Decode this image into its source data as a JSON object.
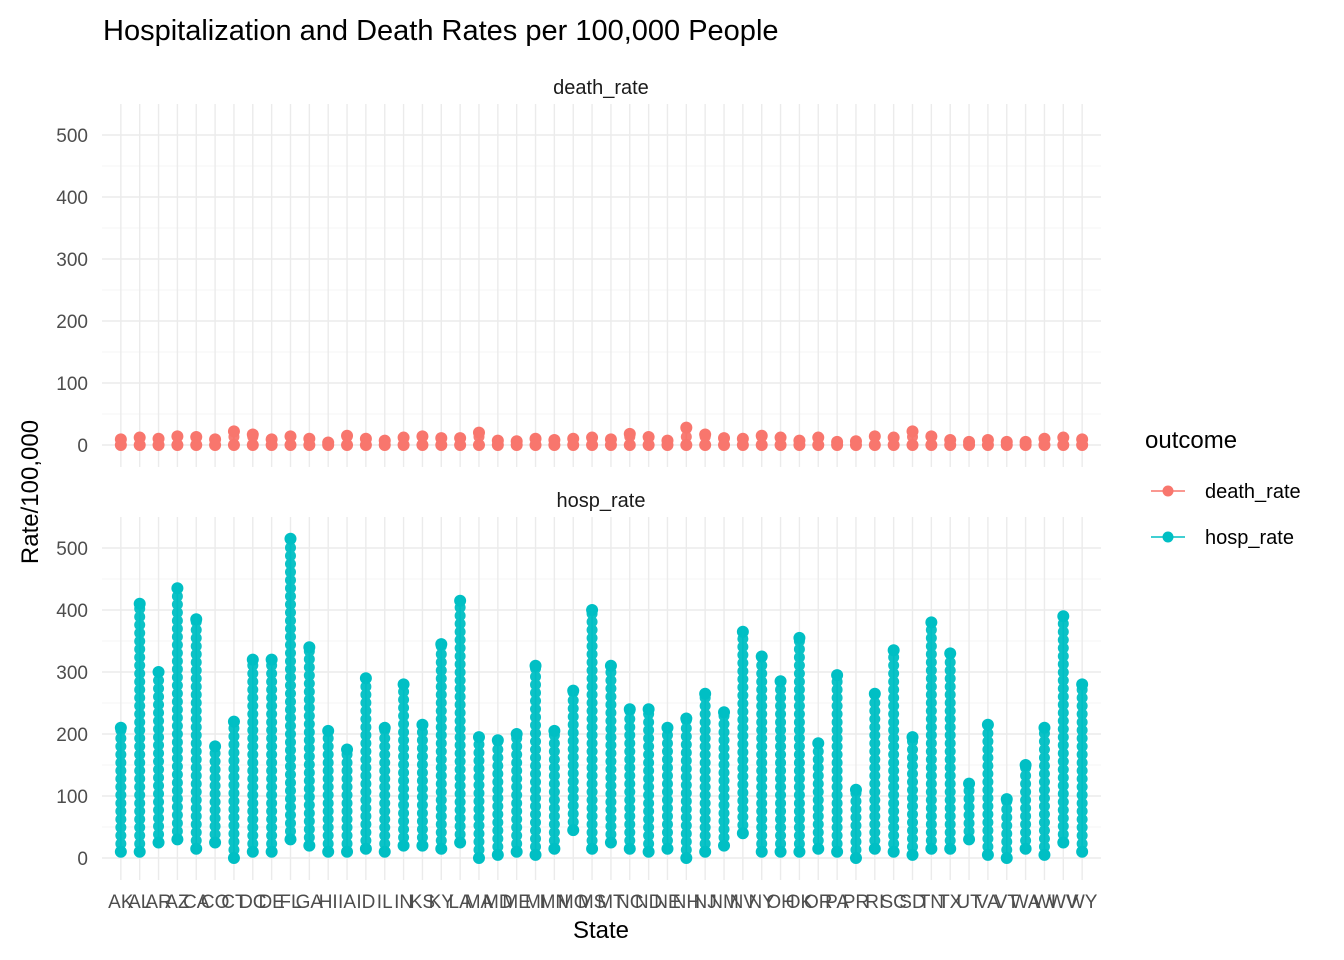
{
  "chart_data": {
    "type": "line",
    "title": "Hospitalization and Death Rates per 100,000 People",
    "xlabel": "State",
    "ylabel": "Rate/100,000",
    "ylim": [
      0,
      520
    ],
    "yticks": [
      0,
      100,
      200,
      300,
      400,
      500
    ],
    "grid": true,
    "legend": {
      "title": "outcome",
      "placement": "right"
    },
    "colors": {
      "death_rate": "#F8766D",
      "hosp_rate": "#00BFC4"
    },
    "categories": [
      "AK",
      "AL",
      "AR",
      "AZ",
      "CA",
      "CO",
      "CT",
      "DC",
      "DE",
      "FL",
      "GA",
      "HI",
      "IA",
      "ID",
      "IL",
      "IN",
      "KS",
      "KY",
      "LA",
      "MA",
      "MD",
      "ME",
      "MI",
      "MN",
      "MO",
      "MS",
      "MT",
      "NC",
      "ND",
      "NE",
      "NH",
      "NJ",
      "NM",
      "NV",
      "NY",
      "OH",
      "OK",
      "OR",
      "PA",
      "PR",
      "RI",
      "SC",
      "SD",
      "TN",
      "TX",
      "UT",
      "VA",
      "VT",
      "WA",
      "WI",
      "WV",
      "WY"
    ],
    "series": [
      {
        "name": "death_rate",
        "ranges": [
          [
            0,
            9
          ],
          [
            0,
            12
          ],
          [
            0,
            10
          ],
          [
            0,
            14
          ],
          [
            0,
            13
          ],
          [
            0,
            9
          ],
          [
            0,
            22
          ],
          [
            0,
            17
          ],
          [
            0,
            9
          ],
          [
            0,
            14
          ],
          [
            0,
            10
          ],
          [
            0,
            4
          ],
          [
            0,
            15
          ],
          [
            0,
            10
          ],
          [
            0,
            7
          ],
          [
            0,
            12
          ],
          [
            0,
            14
          ],
          [
            0,
            11
          ],
          [
            0,
            11
          ],
          [
            0,
            20
          ],
          [
            0,
            7
          ],
          [
            0,
            6
          ],
          [
            0,
            10
          ],
          [
            0,
            8
          ],
          [
            0,
            10
          ],
          [
            0,
            12
          ],
          [
            0,
            9
          ],
          [
            0,
            18
          ],
          [
            0,
            13
          ],
          [
            0,
            7
          ],
          [
            0,
            28
          ],
          [
            0,
            17
          ],
          [
            0,
            11
          ],
          [
            0,
            10
          ],
          [
            0,
            15
          ],
          [
            0,
            12
          ],
          [
            0,
            7
          ],
          [
            0,
            12
          ],
          [
            0,
            5
          ],
          [
            0,
            6
          ],
          [
            0,
            14
          ],
          [
            0,
            12
          ],
          [
            0,
            22
          ],
          [
            0,
            14
          ],
          [
            0,
            8
          ],
          [
            0,
            5
          ],
          [
            0,
            8
          ],
          [
            0,
            5
          ],
          [
            0,
            5
          ],
          [
            0,
            10
          ],
          [
            0,
            12
          ],
          [
            0,
            9
          ]
        ]
      },
      {
        "name": "hosp_rate",
        "ranges": [
          [
            10,
            210
          ],
          [
            10,
            410
          ],
          [
            25,
            300
          ],
          [
            30,
            435
          ],
          [
            15,
            385
          ],
          [
            25,
            180
          ],
          [
            0,
            220
          ],
          [
            10,
            320
          ],
          [
            10,
            320
          ],
          [
            30,
            515
          ],
          [
            20,
            340
          ],
          [
            10,
            205
          ],
          [
            10,
            175
          ],
          [
            15,
            290
          ],
          [
            10,
            210
          ],
          [
            20,
            280
          ],
          [
            20,
            215
          ],
          [
            15,
            345
          ],
          [
            25,
            415
          ],
          [
            0,
            195
          ],
          [
            5,
            190
          ],
          [
            10,
            200
          ],
          [
            5,
            310
          ],
          [
            15,
            205
          ],
          [
            45,
            270
          ],
          [
            15,
            400
          ],
          [
            25,
            310
          ],
          [
            15,
            240
          ],
          [
            10,
            240
          ],
          [
            15,
            210
          ],
          [
            0,
            225
          ],
          [
            10,
            265
          ],
          [
            20,
            235
          ],
          [
            40,
            365
          ],
          [
            10,
            325
          ],
          [
            10,
            285
          ],
          [
            10,
            355
          ],
          [
            15,
            185
          ],
          [
            10,
            295
          ],
          [
            0,
            110
          ],
          [
            15,
            265
          ],
          [
            10,
            335
          ],
          [
            5,
            195
          ],
          [
            15,
            380
          ],
          [
            15,
            330
          ],
          [
            30,
            120
          ],
          [
            5,
            215
          ],
          [
            0,
            95
          ],
          [
            15,
            150
          ],
          [
            5,
            210
          ],
          [
            25,
            390
          ],
          [
            10,
            280
          ]
        ]
      }
    ]
  }
}
